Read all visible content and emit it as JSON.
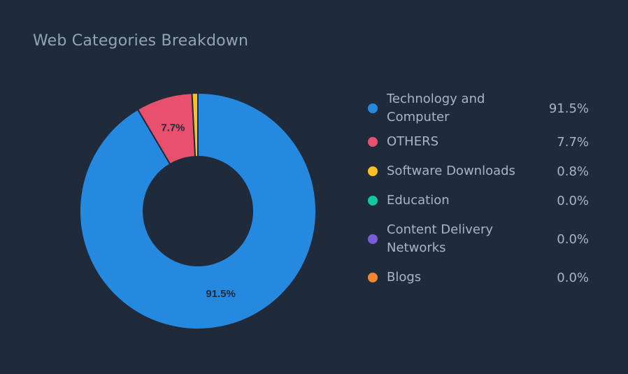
{
  "title": "Web Categories Breakdown",
  "chart_data": {
    "type": "pie",
    "variant": "donut",
    "title": "Web Categories Breakdown",
    "categories": [
      "Technology and Computer",
      "OTHERS",
      "Software Downloads",
      "Education",
      "Content Delivery Networks",
      "Blogs"
    ],
    "values": [
      91.5,
      7.7,
      0.8,
      0.0,
      0.0,
      0.0
    ],
    "value_labels": [
      "91.5%",
      "7.7%",
      "0.8%",
      "0.0%",
      "0.0%",
      "0.0%"
    ],
    "slice_labels_shown": [
      "91.5%",
      "7.7%",
      null,
      null,
      null,
      null
    ],
    "colors": [
      "#2589e0",
      "#e8506e",
      "#fbbf24",
      "#10c9a0",
      "#7c5cd6",
      "#f5862e"
    ],
    "legend_position": "right"
  },
  "legend": [
    {
      "name": "Technology and Computer",
      "value": "91.5%",
      "color": "#2589e0"
    },
    {
      "name": "OTHERS",
      "value": "7.7%",
      "color": "#e8506e"
    },
    {
      "name": "Software Downloads",
      "value": "0.8%",
      "color": "#fbbf24"
    },
    {
      "name": "Education",
      "value": "0.0%",
      "color": "#10c9a0"
    },
    {
      "name": "Content Delivery Networks",
      "value": "0.0%",
      "color": "#7c5cd6"
    },
    {
      "name": "Blogs",
      "value": "0.0%",
      "color": "#f5862e"
    }
  ]
}
